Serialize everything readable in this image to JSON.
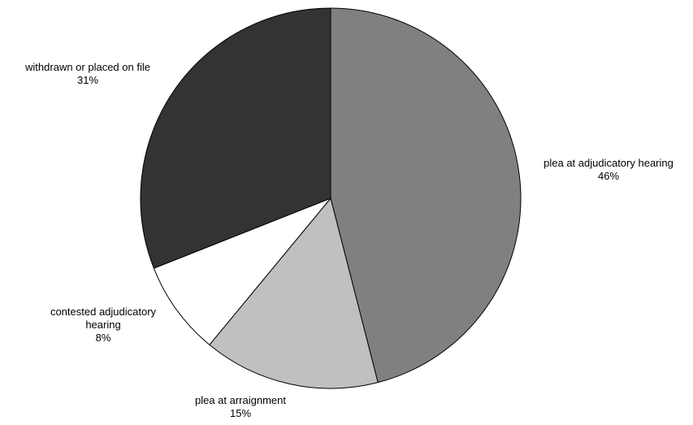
{
  "chart_data": {
    "type": "pie",
    "title": "",
    "start_angle_deg": 0,
    "direction": "clockwise",
    "legend": "none",
    "slices": [
      {
        "label_lines": [
          "plea at adjudicatory hearing"
        ],
        "value": 46,
        "value_label": "46%",
        "color": "#808080"
      },
      {
        "label_lines": [
          "plea at arraignment"
        ],
        "value": 15,
        "value_label": "15%",
        "color": "#c0c0c0"
      },
      {
        "label_lines": [
          "contested adjudicatory",
          "hearing"
        ],
        "value": 8,
        "value_label": "8%",
        "color": "#ffffff"
      },
      {
        "label_lines": [
          "withdrawn or placed on file"
        ],
        "value": 31,
        "value_label": "31%",
        "color": "#333333"
      }
    ],
    "outline_color": "#000000"
  }
}
